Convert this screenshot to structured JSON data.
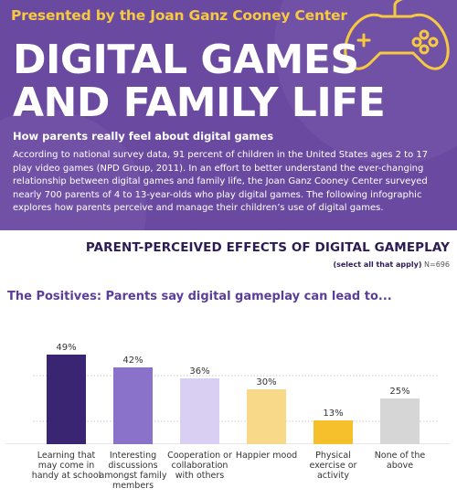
{
  "header": {
    "presented_by": "Presented by the Joan Ganz Cooney Center",
    "title_line1": "DIGITAL GAMES",
    "title_line2": "AND FAMILY LIFE",
    "subtitle": "How parents really feel about digital games",
    "intro": "According to national survey data, 91 percent of children in the United States ages 2 to 17 play video games (NPD Group, 2011). In an effort to better understand the ever-changing relationship between digital games and family life, the Joan Ganz Cooney Center surveyed nearly 700 parents of 4 to 13-year-olds who play digital games. The following infographic explores how parents perceive and manage their children’s use of digital games."
  },
  "colors": {
    "header_bg": "#6a4aa1",
    "accent_yellow": "#f6c940",
    "dark_purple": "#2b1c56"
  },
  "chart_data": {
    "type": "bar",
    "title": "PARENT-PERCEIVED EFFECTS OF DIGITAL GAMEPLAY",
    "note": "(select all that apply)",
    "sample_size": "N=696",
    "section_title": "The Positives: Parents say digital gameplay can lead to...",
    "categories": [
      "Learning that may come in handy at school",
      "Interesting discussions amongst family members",
      "Cooperation or collaboration with others",
      "Happier mood",
      "Physical exercise or activity",
      "None of the above"
    ],
    "values": [
      49,
      42,
      36,
      30,
      13,
      25
    ],
    "value_labels": [
      "49%",
      "42%",
      "36%",
      "30%",
      "13%",
      "25%"
    ],
    "bar_colors": [
      "#3a2573",
      "#8a71c9",
      "#d9cff2",
      "#f8d98a",
      "#f6bf2c",
      "#d6d6d6"
    ],
    "ylim": [
      0,
      50
    ],
    "grid": true,
    "legend": "none"
  }
}
